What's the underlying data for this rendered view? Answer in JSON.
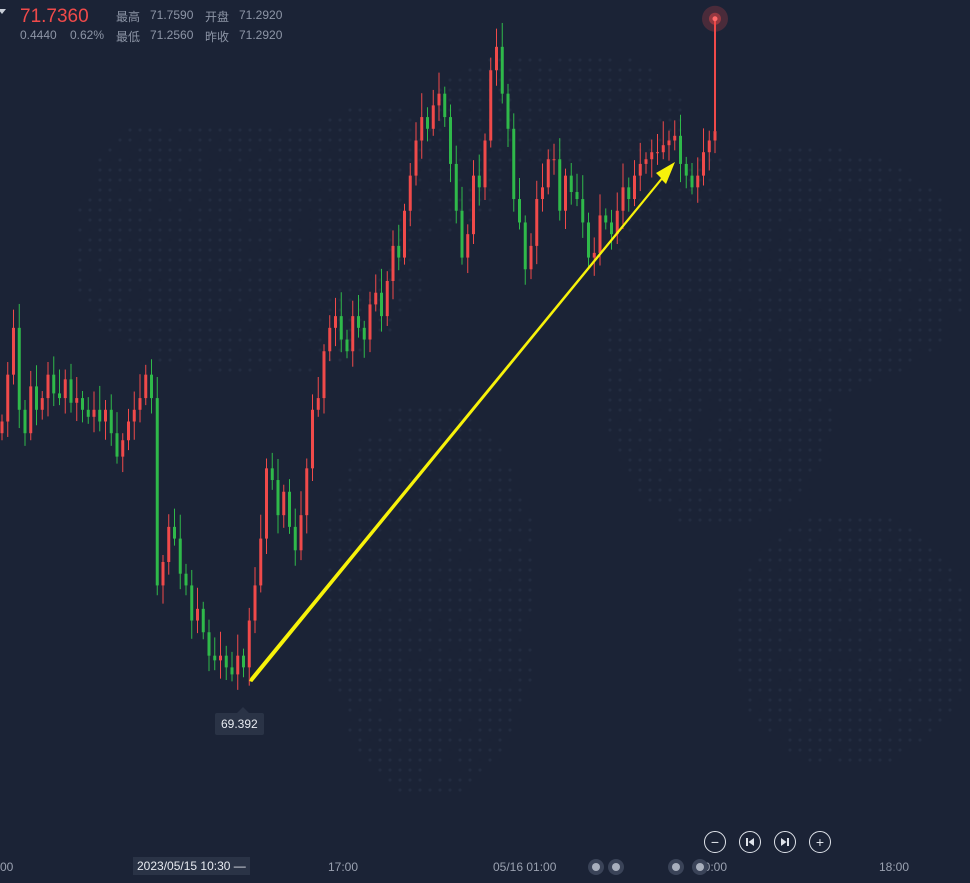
{
  "header": {
    "last_price": "71.7360",
    "change": "0.4440",
    "change_pct": "0.62%",
    "high_label": "最高",
    "high_value": "71.7590",
    "low_label": "最低",
    "low_value": "71.2560",
    "open_label": "开盘",
    "open_value": "71.2920",
    "prev_close_label": "昨收",
    "prev_close_value": "71.2920"
  },
  "crosshair_time": "2023/05/15 10:30 —",
  "low_marker": "69.392",
  "x_ticks": [
    "00",
    "17:00",
    "05/16 01:00",
    "10:00",
    "18:00"
  ],
  "controls": {
    "zoom_out": "−",
    "zoom_in": "+",
    "prev_icon": "skip-back-icon",
    "next_icon": "skip-forward-icon"
  },
  "colors": {
    "up": "#f04a4a",
    "down": "#2fb94a",
    "arrow": "#f7f20a",
    "background": "#1b2336"
  },
  "chart_data": {
    "type": "candlestick",
    "title": "",
    "xlabel": "",
    "ylabel": "",
    "ylim": [
      68.7,
      72.3
    ],
    "annotation": {
      "type": "arrow",
      "from": [
        69.392,
        "2023/05/15 10:30"
      ],
      "to": "upward",
      "color": "#f7f20a"
    },
    "close": [
      70.5,
      70.7,
      70.9,
      70.55,
      70.45,
      70.65,
      70.55,
      70.6,
      70.7,
      70.62,
      70.6,
      70.68,
      70.58,
      70.6,
      70.55,
      70.52,
      70.55,
      70.5,
      70.55,
      70.45,
      70.35,
      70.42,
      70.5,
      70.55,
      70.6,
      70.7,
      70.6,
      69.8,
      69.9,
      70.05,
      70.0,
      69.85,
      69.8,
      69.65,
      69.7,
      69.6,
      69.5,
      69.48,
      69.5,
      69.45,
      69.42,
      69.5,
      69.45,
      69.65,
      69.8,
      70.0,
      70.3,
      70.25,
      70.1,
      70.2,
      70.05,
      69.95,
      70.1,
      70.3,
      70.55,
      70.6,
      70.8,
      70.9,
      70.95,
      70.85,
      70.8,
      70.95,
      70.9,
      70.85,
      71.0,
      71.05,
      70.95,
      71.1,
      71.25,
      71.2,
      71.4,
      71.55,
      71.7,
      71.8,
      71.75,
      71.85,
      71.9,
      71.8,
      71.6,
      71.4,
      71.2,
      71.3,
      71.55,
      71.5,
      71.7,
      72.0,
      72.1,
      71.9,
      71.75,
      71.45,
      71.35,
      71.15,
      71.25,
      71.45,
      71.5,
      71.62,
      71.62,
      71.4,
      71.55,
      71.48,
      71.45,
      71.35,
      71.2,
      71.22,
      71.38,
      71.35,
      71.3,
      71.4,
      71.5,
      71.45,
      71.55,
      71.6,
      71.62,
      71.65,
      71.65,
      71.68,
      71.7,
      71.72,
      71.6,
      71.55,
      71.5,
      71.55,
      71.65,
      71.7,
      71.74
    ]
  }
}
